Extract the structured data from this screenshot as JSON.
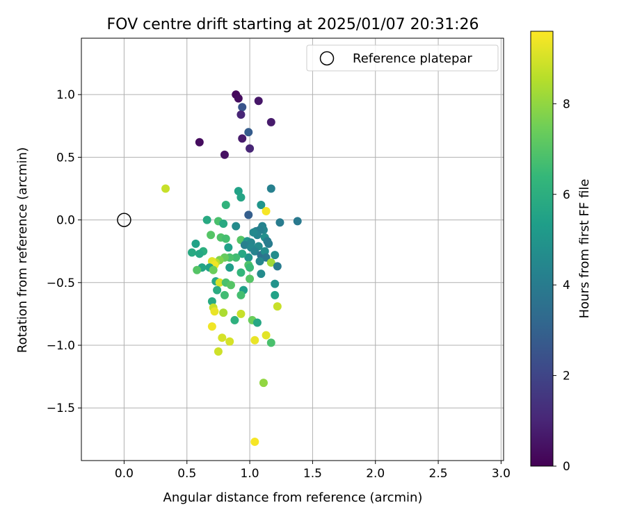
{
  "chart_data": {
    "type": "scatter",
    "title": "FOV centre drift starting at 2025/01/07 20:31:26",
    "xlabel": "Angular distance from reference (arcmin)",
    "ylabel": "Rotation from reference (arcmin)",
    "xlim": [
      -0.34,
      3.02
    ],
    "ylim": [
      -1.92,
      1.45
    ],
    "xticks": [
      0.0,
      0.5,
      1.0,
      1.5,
      2.0,
      2.5,
      3.0
    ],
    "xtick_labels": [
      "0.0",
      "0.5",
      "1.0",
      "1.5",
      "2.0",
      "2.5",
      "3.0"
    ],
    "yticks": [
      1.0,
      0.5,
      0.0,
      -0.5,
      -1.0,
      -1.5
    ],
    "ytick_labels": [
      "1.0",
      "0.5",
      "0.0",
      "−0.5",
      "−1.0",
      "−1.5"
    ],
    "grid": true,
    "legend": {
      "placement": "top-right",
      "entries": [
        "Reference platepar"
      ]
    },
    "reference_point": {
      "x": 0.0,
      "y": 0.0,
      "label": "Reference platepar",
      "marker": "open-circle",
      "color": "#000000"
    },
    "colorbar": {
      "label": "Hours from first FF file",
      "range": [
        0,
        9.6
      ],
      "ticks": [
        0,
        2,
        4,
        6,
        8
      ],
      "tick_labels": [
        "0",
        "2",
        "4",
        "6",
        "8"
      ],
      "colormap": "viridis",
      "stops": [
        "#440154",
        "#482878",
        "#3e4989",
        "#31688e",
        "#26828e",
        "#1f9e89",
        "#35b779",
        "#6ece58",
        "#b5de2b",
        "#fde725"
      ]
    },
    "series": [
      {
        "points": [
          {
            "x": 0.89,
            "y": 1.0,
            "t": 0.2
          },
          {
            "x": 0.91,
            "y": 0.97,
            "t": 0.3
          },
          {
            "x": 1.07,
            "y": 0.95,
            "t": 0.6
          },
          {
            "x": 1.17,
            "y": 0.78,
            "t": 0.7
          },
          {
            "x": 0.94,
            "y": 0.9,
            "t": 2.5
          },
          {
            "x": 0.93,
            "y": 0.84,
            "t": 1.0
          },
          {
            "x": 0.6,
            "y": 0.62,
            "t": 0.3
          },
          {
            "x": 0.94,
            "y": 0.65,
            "t": 0.7
          },
          {
            "x": 0.99,
            "y": 0.7,
            "t": 2.8
          },
          {
            "x": 1.0,
            "y": 0.57,
            "t": 1.0
          },
          {
            "x": 0.8,
            "y": 0.52,
            "t": 0.4
          },
          {
            "x": 0.33,
            "y": 0.25,
            "t": 8.8
          },
          {
            "x": 0.91,
            "y": 0.23,
            "t": 5.5
          },
          {
            "x": 0.93,
            "y": 0.18,
            "t": 5.6
          },
          {
            "x": 0.81,
            "y": 0.12,
            "t": 6.2
          },
          {
            "x": 1.17,
            "y": 0.25,
            "t": 4.2
          },
          {
            "x": 1.09,
            "y": 0.12,
            "t": 5.0
          },
          {
            "x": 1.13,
            "y": 0.07,
            "t": 9.5
          },
          {
            "x": 0.99,
            "y": 0.04,
            "t": 2.9
          },
          {
            "x": 1.24,
            "y": -0.02,
            "t": 4.0
          },
          {
            "x": 1.38,
            "y": -0.01,
            "t": 3.9
          },
          {
            "x": 0.66,
            "y": 0.0,
            "t": 5.8
          },
          {
            "x": 0.75,
            "y": -0.01,
            "t": 6.8
          },
          {
            "x": 0.79,
            "y": -0.03,
            "t": 5.8
          },
          {
            "x": 0.89,
            "y": -0.05,
            "t": 4.6
          },
          {
            "x": 1.1,
            "y": -0.05,
            "t": 4.3
          },
          {
            "x": 1.11,
            "y": -0.08,
            "t": 4.4
          },
          {
            "x": 1.08,
            "y": -0.08,
            "t": 4.2
          },
          {
            "x": 1.05,
            "y": -0.09,
            "t": 4.1
          },
          {
            "x": 1.06,
            "y": -0.12,
            "t": 4.3
          },
          {
            "x": 1.03,
            "y": -0.1,
            "t": 4.5
          },
          {
            "x": 1.12,
            "y": -0.14,
            "t": 4.8
          },
          {
            "x": 0.69,
            "y": -0.12,
            "t": 7.0
          },
          {
            "x": 0.77,
            "y": -0.14,
            "t": 6.9
          },
          {
            "x": 0.81,
            "y": -0.15,
            "t": 6.7
          },
          {
            "x": 0.93,
            "y": -0.16,
            "t": 7.0
          },
          {
            "x": 0.98,
            "y": -0.17,
            "t": 5.0
          },
          {
            "x": 1.01,
            "y": -0.18,
            "t": 4.4
          },
          {
            "x": 1.14,
            "y": -0.17,
            "t": 4.1
          },
          {
            "x": 1.15,
            "y": -0.19,
            "t": 4.0
          },
          {
            "x": 1.07,
            "y": -0.21,
            "t": 4.6
          },
          {
            "x": 0.57,
            "y": -0.19,
            "t": 5.5
          },
          {
            "x": 0.63,
            "y": -0.25,
            "t": 6.0
          },
          {
            "x": 0.54,
            "y": -0.26,
            "t": 5.8
          },
          {
            "x": 0.6,
            "y": -0.27,
            "t": 5.7
          },
          {
            "x": 0.83,
            "y": -0.22,
            "t": 5.4
          },
          {
            "x": 0.96,
            "y": -0.2,
            "t": 4.2
          },
          {
            "x": 1.01,
            "y": -0.22,
            "t": 4.5
          },
          {
            "x": 1.04,
            "y": -0.25,
            "t": 4.3
          },
          {
            "x": 1.09,
            "y": -0.28,
            "t": 3.6
          },
          {
            "x": 1.12,
            "y": -0.25,
            "t": 4.7
          },
          {
            "x": 1.13,
            "y": -0.3,
            "t": 3.8
          },
          {
            "x": 1.2,
            "y": -0.28,
            "t": 4.7
          },
          {
            "x": 1.08,
            "y": -0.33,
            "t": 4.4
          },
          {
            "x": 0.99,
            "y": -0.3,
            "t": 4.9
          },
          {
            "x": 0.94,
            "y": -0.27,
            "t": 5.7
          },
          {
            "x": 0.89,
            "y": -0.3,
            "t": 6.6
          },
          {
            "x": 0.84,
            "y": -0.3,
            "t": 6.8
          },
          {
            "x": 0.8,
            "y": -0.3,
            "t": 7.3
          },
          {
            "x": 0.76,
            "y": -0.32,
            "t": 7.7
          },
          {
            "x": 0.73,
            "y": -0.34,
            "t": 8.5
          },
          {
            "x": 0.7,
            "y": -0.33,
            "t": 9.2
          },
          {
            "x": 0.72,
            "y": -0.36,
            "t": 9.4
          },
          {
            "x": 0.68,
            "y": -0.38,
            "t": 5.5
          },
          {
            "x": 0.62,
            "y": -0.38,
            "t": 5.6
          },
          {
            "x": 0.58,
            "y": -0.4,
            "t": 7.0
          },
          {
            "x": 0.71,
            "y": -0.4,
            "t": 7.4
          },
          {
            "x": 0.84,
            "y": -0.38,
            "t": 5.3
          },
          {
            "x": 0.99,
            "y": -0.36,
            "t": 6.9
          },
          {
            "x": 1.0,
            "y": -0.38,
            "t": 6.5
          },
          {
            "x": 1.17,
            "y": -0.34,
            "t": 8.2
          },
          {
            "x": 1.22,
            "y": -0.37,
            "t": 4.0
          },
          {
            "x": 0.93,
            "y": -0.42,
            "t": 6.3
          },
          {
            "x": 1.09,
            "y": -0.43,
            "t": 4.6
          },
          {
            "x": 1.0,
            "y": -0.47,
            "t": 7.0
          },
          {
            "x": 0.73,
            "y": -0.49,
            "t": 5.7
          },
          {
            "x": 0.76,
            "y": -0.5,
            "t": 9.0
          },
          {
            "x": 0.81,
            "y": -0.5,
            "t": 6.8
          },
          {
            "x": 0.85,
            "y": -0.52,
            "t": 7.0
          },
          {
            "x": 0.74,
            "y": -0.56,
            "t": 5.9
          },
          {
            "x": 0.95,
            "y": -0.56,
            "t": 5.4
          },
          {
            "x": 1.2,
            "y": -0.51,
            "t": 4.9
          },
          {
            "x": 0.8,
            "y": -0.6,
            "t": 6.6
          },
          {
            "x": 0.93,
            "y": -0.6,
            "t": 6.7
          },
          {
            "x": 1.2,
            "y": -0.6,
            "t": 5.5
          },
          {
            "x": 0.7,
            "y": -0.65,
            "t": 5.8
          },
          {
            "x": 1.22,
            "y": -0.69,
            "t": 8.8
          },
          {
            "x": 0.71,
            "y": -0.7,
            "t": 8.8
          },
          {
            "x": 0.72,
            "y": -0.73,
            "t": 9.3
          },
          {
            "x": 0.79,
            "y": -0.74,
            "t": 8.4
          },
          {
            "x": 0.93,
            "y": -0.75,
            "t": 8.8
          },
          {
            "x": 0.7,
            "y": -0.85,
            "t": 9.4
          },
          {
            "x": 0.88,
            "y": -0.8,
            "t": 6.1
          },
          {
            "x": 1.02,
            "y": -0.8,
            "t": 7.4
          },
          {
            "x": 1.06,
            "y": -0.82,
            "t": 5.7
          },
          {
            "x": 1.13,
            "y": -0.92,
            "t": 9.2
          },
          {
            "x": 0.78,
            "y": -0.94,
            "t": 9.0
          },
          {
            "x": 0.84,
            "y": -0.97,
            "t": 9.0
          },
          {
            "x": 1.04,
            "y": -0.96,
            "t": 9.3
          },
          {
            "x": 1.17,
            "y": -0.98,
            "t": 6.8
          },
          {
            "x": 0.75,
            "y": -1.05,
            "t": 8.9
          },
          {
            "x": 1.11,
            "y": -1.3,
            "t": 8.0
          },
          {
            "x": 1.04,
            "y": -1.77,
            "t": 9.5
          }
        ]
      }
    ]
  }
}
